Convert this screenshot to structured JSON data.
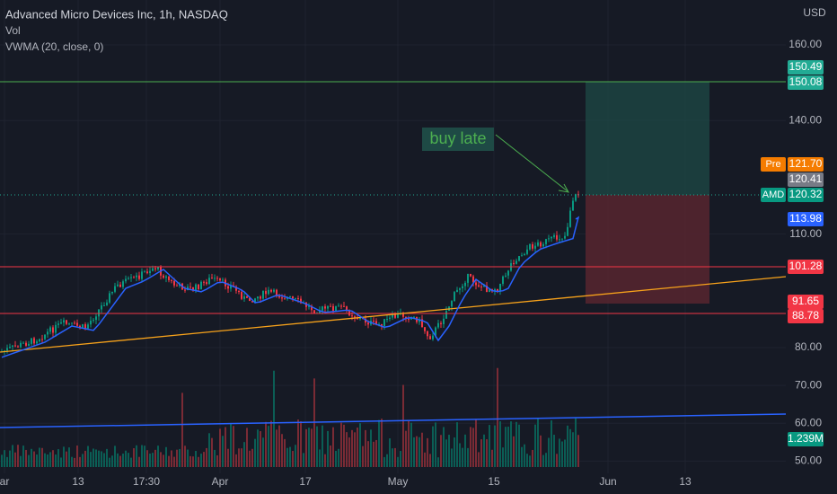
{
  "header": {
    "title": "Advanced Micro Devices Inc, 1h, NASDAQ",
    "indicators": [
      "Vol",
      "VWMA (20, close, 0)"
    ],
    "currency": "USD"
  },
  "price_axis": [
    {
      "value": 160,
      "label": "160.00"
    },
    {
      "value": 140,
      "label": "140.00"
    },
    {
      "value": 110,
      "label": "110.00"
    },
    {
      "value": 80,
      "label": "80.00"
    },
    {
      "value": 70,
      "label": "70.00"
    },
    {
      "value": 60,
      "label": "60.00"
    },
    {
      "value": 50,
      "label": "50.00"
    }
  ],
  "time_axis": [
    "ar",
    "13",
    "17:30",
    "Apr",
    "17",
    "May",
    "15",
    "Jun",
    "13"
  ],
  "price_tags": [
    {
      "text": "150.49",
      "color": "#22ab94"
    },
    {
      "text": "150.08",
      "color": "#22ab94"
    },
    {
      "prefix": "Pre",
      "text": "121.70",
      "color": "#f57c00"
    },
    {
      "text": "120.41",
      "color": "#787b86"
    },
    {
      "prefix": "AMD",
      "text": "120.32",
      "color": "#089981"
    },
    {
      "text": "113.98",
      "color": "#2962ff"
    },
    {
      "text": "101.28",
      "color": "#f23645"
    },
    {
      "text": "91.65",
      "color": "#f23645"
    },
    {
      "text": "88.78",
      "color": "#f23645"
    },
    {
      "text": "1.239M",
      "color": "#089981"
    }
  ],
  "annotation": "buy late"
}
